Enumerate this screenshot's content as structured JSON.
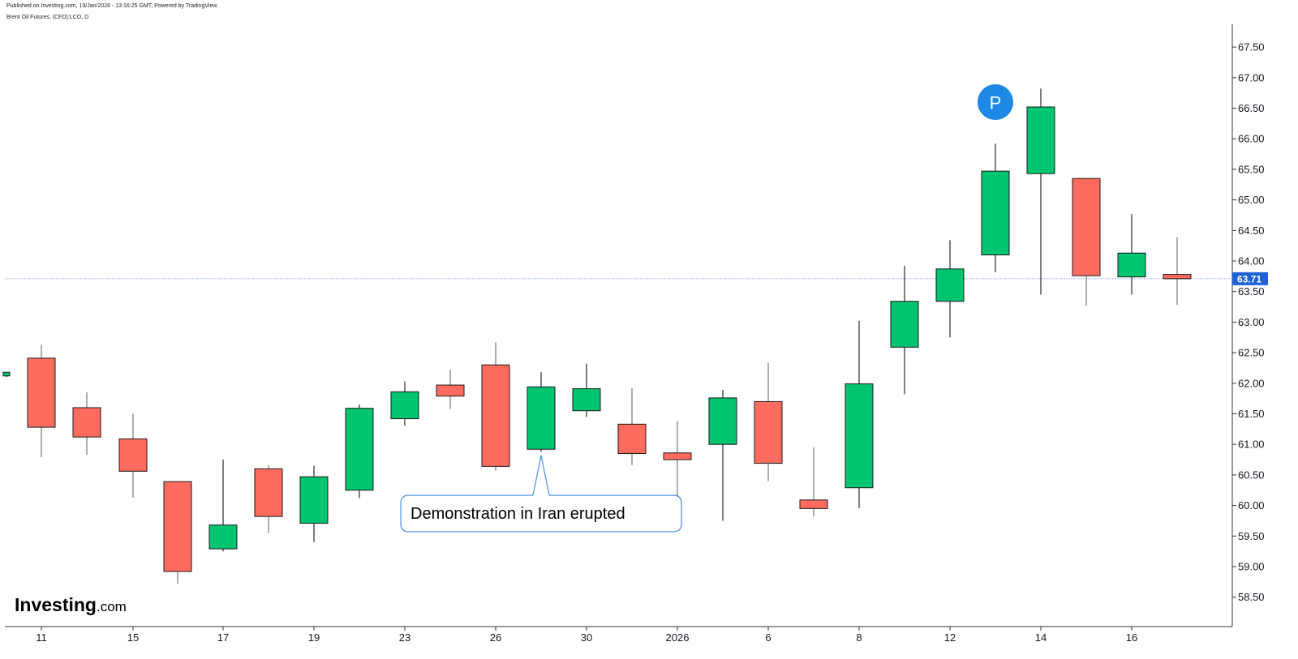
{
  "header": {
    "published": "Published on Investing.com, 19/Jan/2026 - 13:16:25 GMT, Powered by TradingView.",
    "symbol": "Brent Oil Futures, (CFD):LCO, D"
  },
  "annotation": {
    "text": "Demonstration in Iran erupted"
  },
  "marker": {
    "label": "P",
    "color": "#1e88e5"
  },
  "logo": {
    "main": "Investing",
    "suffix": ".com"
  },
  "colors": {
    "up": "#00c46f",
    "down": "#ff6b5e",
    "last_price": "#1e63d6"
  },
  "chart_data": {
    "type": "candlestick",
    "symbol": "Brent Oil Futures, (CFD):LCO, D",
    "interval": "D",
    "ylim": [
      58.0,
      67.75
    ],
    "y_ticks": [
      "67.50",
      "67.00",
      "66.50",
      "66.00",
      "65.50",
      "65.00",
      "64.50",
      "64.00",
      "63.50",
      "63.00",
      "62.50",
      "62.00",
      "61.50",
      "61.00",
      "60.50",
      "60.00",
      "59.50",
      "59.00",
      "58.50"
    ],
    "x_tick_labels": [
      "11",
      "15",
      "17",
      "19",
      "23",
      "26",
      "30",
      "2026",
      "6",
      "8",
      "12",
      "14",
      "16"
    ],
    "last_price": 63.71,
    "last_price_label": "63.71",
    "candles": [
      {
        "date": "Dec 10",
        "open": 62.12,
        "high": 62.18,
        "low": 62.1,
        "close": 62.18
      },
      {
        "date": "Dec 11",
        "open": 62.41,
        "high": 62.63,
        "low": 60.79,
        "close": 61.28
      },
      {
        "date": "Dec 12",
        "open": 61.6,
        "high": 61.85,
        "low": 60.83,
        "close": 61.12
      },
      {
        "date": "Dec 15",
        "open": 61.09,
        "high": 61.5,
        "low": 60.13,
        "close": 60.56
      },
      {
        "date": "Dec 16",
        "open": 60.39,
        "high": 60.39,
        "low": 58.72,
        "close": 58.92
      },
      {
        "date": "Dec 17",
        "open": 59.29,
        "high": 60.75,
        "low": 59.25,
        "close": 59.68
      },
      {
        "date": "Dec 18",
        "open": 60.6,
        "high": 60.66,
        "low": 59.55,
        "close": 59.82
      },
      {
        "date": "Dec 19",
        "open": 59.71,
        "high": 60.65,
        "low": 59.4,
        "close": 60.47
      },
      {
        "date": "Dec 22",
        "open": 60.25,
        "high": 61.65,
        "low": 60.12,
        "close": 61.59
      },
      {
        "date": "Dec 23",
        "open": 61.42,
        "high": 62.03,
        "low": 61.3,
        "close": 61.86
      },
      {
        "date": "Dec 24",
        "open": 61.97,
        "high": 62.22,
        "low": 61.58,
        "close": 61.79
      },
      {
        "date": "Dec 26",
        "open": 62.3,
        "high": 62.67,
        "low": 60.57,
        "close": 60.64
      },
      {
        "date": "Dec 29",
        "open": 60.92,
        "high": 62.18,
        "low": 60.88,
        "close": 61.94
      },
      {
        "date": "Dec 30",
        "open": 61.55,
        "high": 62.32,
        "low": 61.45,
        "close": 61.91
      },
      {
        "date": "Dec 31",
        "open": 61.33,
        "high": 61.92,
        "low": 60.66,
        "close": 60.85
      },
      {
        "date": "Jan 2",
        "open": 60.86,
        "high": 61.38,
        "low": 60.01,
        "close": 60.75
      },
      {
        "date": "Jan 5",
        "open": 61.0,
        "high": 61.89,
        "low": 59.75,
        "close": 61.76
      },
      {
        "date": "Jan 6",
        "open": 61.7,
        "high": 62.33,
        "low": 60.4,
        "close": 60.69
      },
      {
        "date": "Jan 7",
        "open": 60.09,
        "high": 60.95,
        "low": 59.82,
        "close": 59.95
      },
      {
        "date": "Jan 8",
        "open": 60.29,
        "high": 63.02,
        "low": 59.96,
        "close": 61.99
      },
      {
        "date": "Jan 9",
        "open": 62.59,
        "high": 63.92,
        "low": 61.82,
        "close": 63.34
      },
      {
        "date": "Jan 12",
        "open": 63.34,
        "high": 64.34,
        "low": 62.75,
        "close": 63.87
      },
      {
        "date": "Jan 13",
        "open": 64.1,
        "high": 65.92,
        "low": 63.82,
        "close": 65.47
      },
      {
        "date": "Jan 14",
        "open": 65.43,
        "high": 66.82,
        "low": 63.45,
        "close": 66.52
      },
      {
        "date": "Jan 15",
        "open": 65.35,
        "high": 65.35,
        "low": 63.27,
        "close": 63.76
      },
      {
        "date": "Jan 16",
        "open": 63.74,
        "high": 64.77,
        "low": 63.45,
        "close": 64.13
      },
      {
        "date": "Jan 19",
        "open": 63.78,
        "high": 64.39,
        "low": 63.28,
        "close": 63.71
      }
    ],
    "annotations": [
      {
        "text": "Demonstration in Iran erupted",
        "pointer_date": "Dec 29"
      },
      {
        "text": "P",
        "type": "marker",
        "date": "Jan 13"
      }
    ]
  }
}
